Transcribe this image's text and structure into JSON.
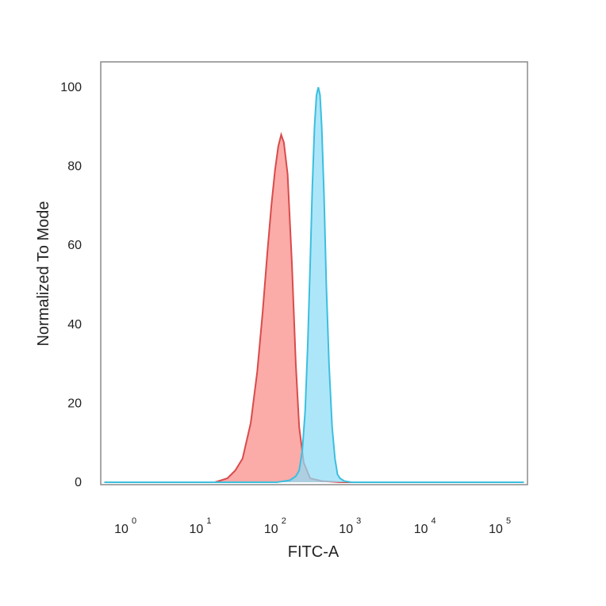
{
  "chart_data": {
    "type": "area",
    "title": "",
    "xlabel": "FITC-A",
    "ylabel": "Normalized To Mode",
    "xscale": "log",
    "xlim": [
      0.5,
      200000
    ],
    "ylim": [
      0,
      100
    ],
    "grid": false,
    "legend": "none",
    "x_ticks": [
      {
        "base": "10",
        "exp": "0",
        "value": 1
      },
      {
        "base": "10",
        "exp": "1",
        "value": 10
      },
      {
        "base": "10",
        "exp": "2",
        "value": 100
      },
      {
        "base": "10",
        "exp": "3",
        "value": 1000
      },
      {
        "base": "10",
        "exp": "4",
        "value": 10000
      },
      {
        "base": "10",
        "exp": "5",
        "value": 100000
      }
    ],
    "y_ticks": [
      {
        "label": "0",
        "value": 0
      },
      {
        "label": "20",
        "value": 20
      },
      {
        "label": "40",
        "value": 40
      },
      {
        "label": "60",
        "value": 60
      },
      {
        "label": "80",
        "value": 80
      },
      {
        "label": "100",
        "value": 100
      }
    ],
    "series": [
      {
        "fill": "#f98b86",
        "stroke": "#d94b4b",
        "x": [
          0.5,
          15,
          22,
          28,
          35,
          45,
          55,
          65,
          75,
          85,
          95,
          105,
          115,
          125,
          140,
          160,
          180,
          200,
          230,
          280,
          400,
          700,
          1000,
          200000
        ],
        "y": [
          0,
          0,
          1,
          3,
          6,
          15,
          28,
          43,
          58,
          70,
          79,
          85,
          88,
          86,
          78,
          55,
          30,
          14,
          5,
          1,
          0.3,
          0,
          0,
          0
        ]
      },
      {
        "fill": "#8fdcf7",
        "stroke": "#3bbfdf",
        "x": [
          0.5,
          100,
          150,
          180,
          200,
          220,
          240,
          260,
          280,
          300,
          320,
          340,
          360,
          380,
          400,
          430,
          460,
          500,
          550,
          600,
          650,
          700,
          800,
          1000,
          200000
        ],
        "y": [
          0,
          0,
          0.5,
          1.5,
          3,
          8,
          18,
          35,
          55,
          75,
          90,
          98,
          100,
          98,
          90,
          72,
          50,
          30,
          14,
          6,
          2,
          1,
          0.3,
          0,
          0
        ]
      }
    ]
  }
}
